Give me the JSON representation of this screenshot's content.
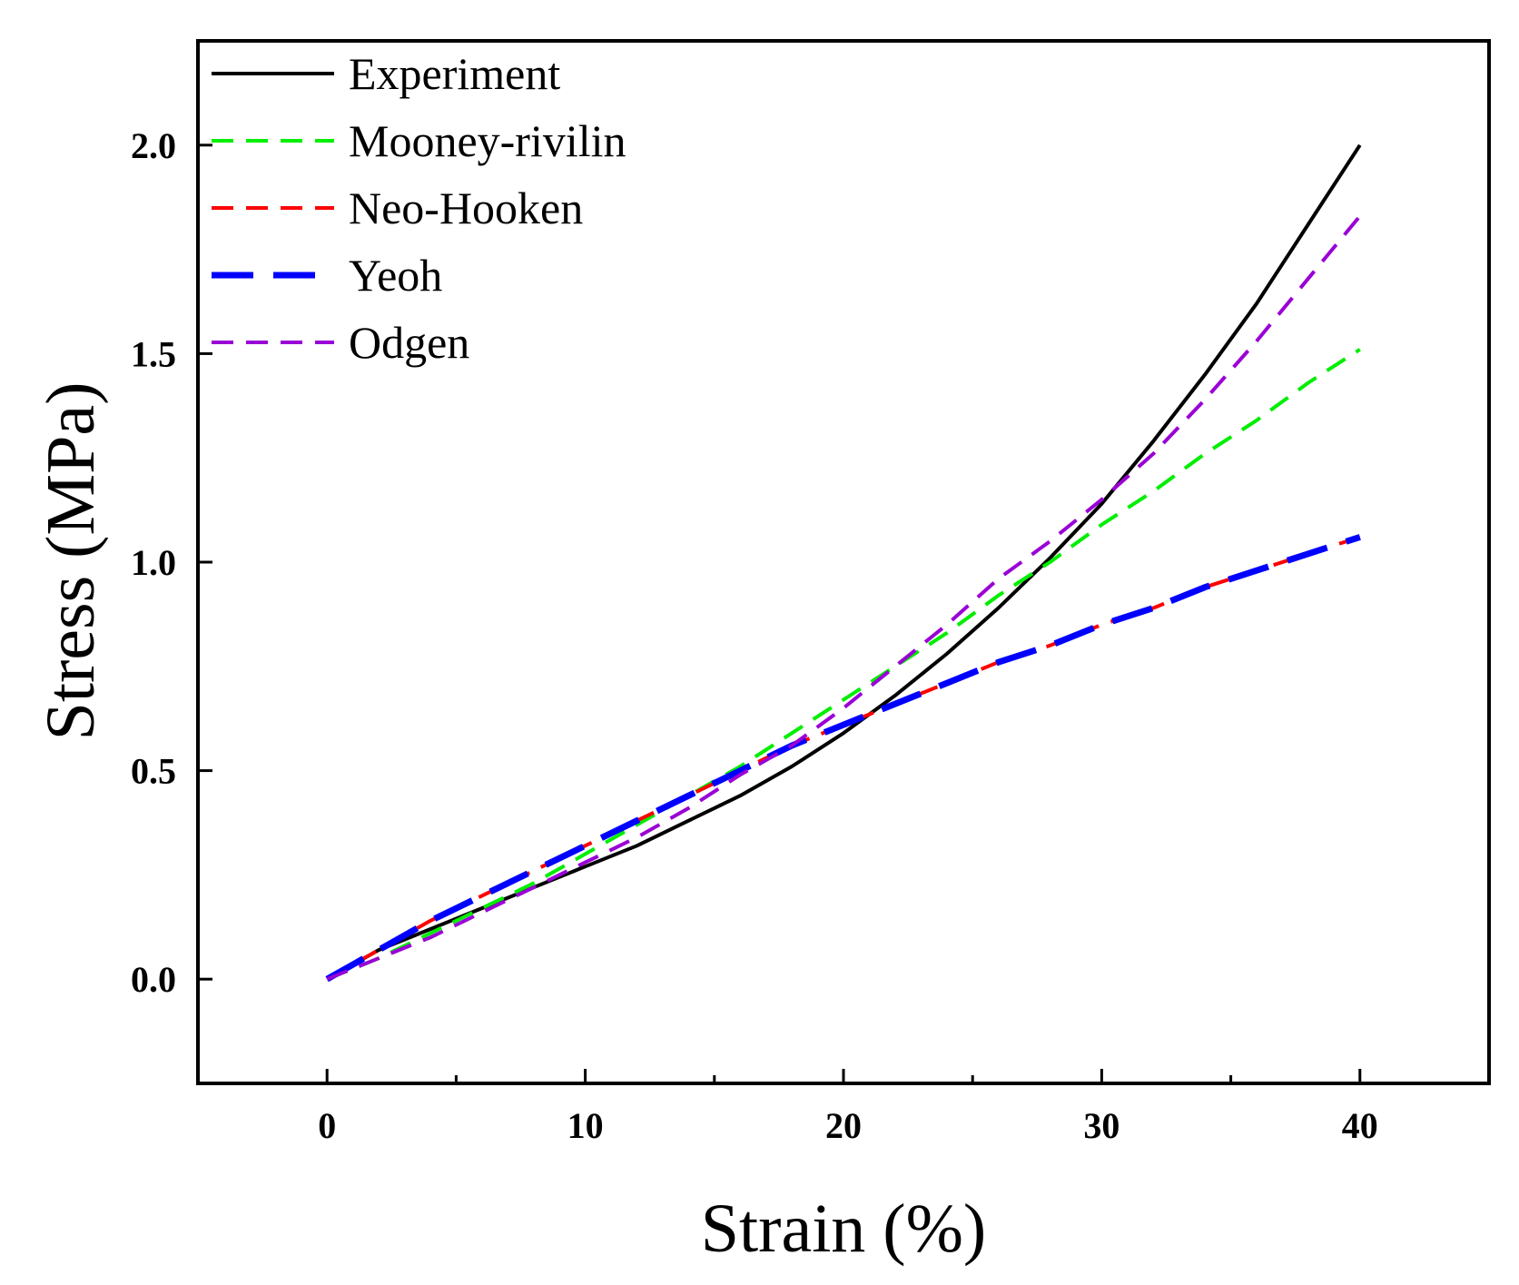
{
  "chart_data": {
    "type": "line",
    "title": "",
    "xlabel": "Strain (%)",
    "ylabel": "Stress (MPa)",
    "xlim": [
      -5,
      45
    ],
    "ylim": [
      -0.25,
      2.25
    ],
    "xticks": [
      0,
      10,
      20,
      30,
      40
    ],
    "xtick_labels": [
      "0",
      "10",
      "20",
      "30",
      "40"
    ],
    "yticks": [
      0.0,
      0.5,
      1.0,
      1.5,
      2.0
    ],
    "ytick_labels": [
      "0.0",
      "0.5",
      "1.0",
      "1.5",
      "2.0"
    ],
    "grid": false,
    "legend_position": "top-left",
    "series": [
      {
        "name": "Experiment",
        "color": "#000000",
        "style": "solid",
        "x": [
          0,
          2,
          4,
          6,
          8,
          10,
          12,
          14,
          16,
          18,
          20,
          22,
          24,
          26,
          28,
          30,
          32,
          34,
          36,
          38,
          40
        ],
        "y": [
          0,
          0.07,
          0.12,
          0.17,
          0.22,
          0.27,
          0.32,
          0.38,
          0.44,
          0.51,
          0.59,
          0.68,
          0.78,
          0.89,
          1.01,
          1.14,
          1.29,
          1.45,
          1.62,
          1.81,
          2.0
        ]
      },
      {
        "name": "Mooney-rivilin",
        "color": "#00ee00",
        "style": "dashed",
        "x": [
          0,
          2,
          4,
          6,
          8,
          10,
          12,
          14,
          16,
          18,
          20,
          22,
          24,
          26,
          28,
          30,
          32,
          34,
          36,
          38,
          40
        ],
        "y": [
          0,
          0.05,
          0.11,
          0.17,
          0.23,
          0.3,
          0.37,
          0.44,
          0.51,
          0.59,
          0.67,
          0.75,
          0.83,
          0.92,
          1.0,
          1.09,
          1.17,
          1.26,
          1.34,
          1.43,
          1.51
        ]
      },
      {
        "name": "Neo-Hooken",
        "color": "#ff0000",
        "style": "dashed",
        "x": [
          0,
          2,
          4,
          6,
          8,
          10,
          12,
          14,
          16,
          18,
          20,
          22,
          24,
          26,
          28,
          30,
          32,
          34,
          36,
          38,
          40
        ],
        "y": [
          0,
          0.07,
          0.14,
          0.2,
          0.26,
          0.32,
          0.38,
          0.44,
          0.5,
          0.56,
          0.61,
          0.66,
          0.71,
          0.76,
          0.8,
          0.85,
          0.89,
          0.94,
          0.98,
          1.02,
          1.06
        ]
      },
      {
        "name": "Yeoh",
        "color": "#0000ff",
        "style": "longdash",
        "x": [
          0,
          2,
          4,
          6,
          8,
          10,
          12,
          14,
          16,
          18,
          20,
          22,
          24,
          26,
          28,
          30,
          32,
          34,
          36,
          38,
          40
        ],
        "y": [
          0,
          0.07,
          0.14,
          0.2,
          0.26,
          0.32,
          0.38,
          0.44,
          0.5,
          0.56,
          0.61,
          0.66,
          0.71,
          0.76,
          0.8,
          0.85,
          0.89,
          0.94,
          0.98,
          1.02,
          1.06
        ]
      },
      {
        "name": "Odgen",
        "color": "#9a00d6",
        "style": "dashed",
        "x": [
          0,
          2,
          4,
          6,
          8,
          10,
          12,
          14,
          16,
          18,
          20,
          22,
          24,
          26,
          28,
          30,
          32,
          34,
          36,
          38,
          40
        ],
        "y": [
          0,
          0.05,
          0.1,
          0.16,
          0.22,
          0.28,
          0.34,
          0.41,
          0.49,
          0.56,
          0.65,
          0.75,
          0.85,
          0.96,
          1.05,
          1.15,
          1.26,
          1.39,
          1.53,
          1.68,
          1.83
        ]
      }
    ]
  }
}
